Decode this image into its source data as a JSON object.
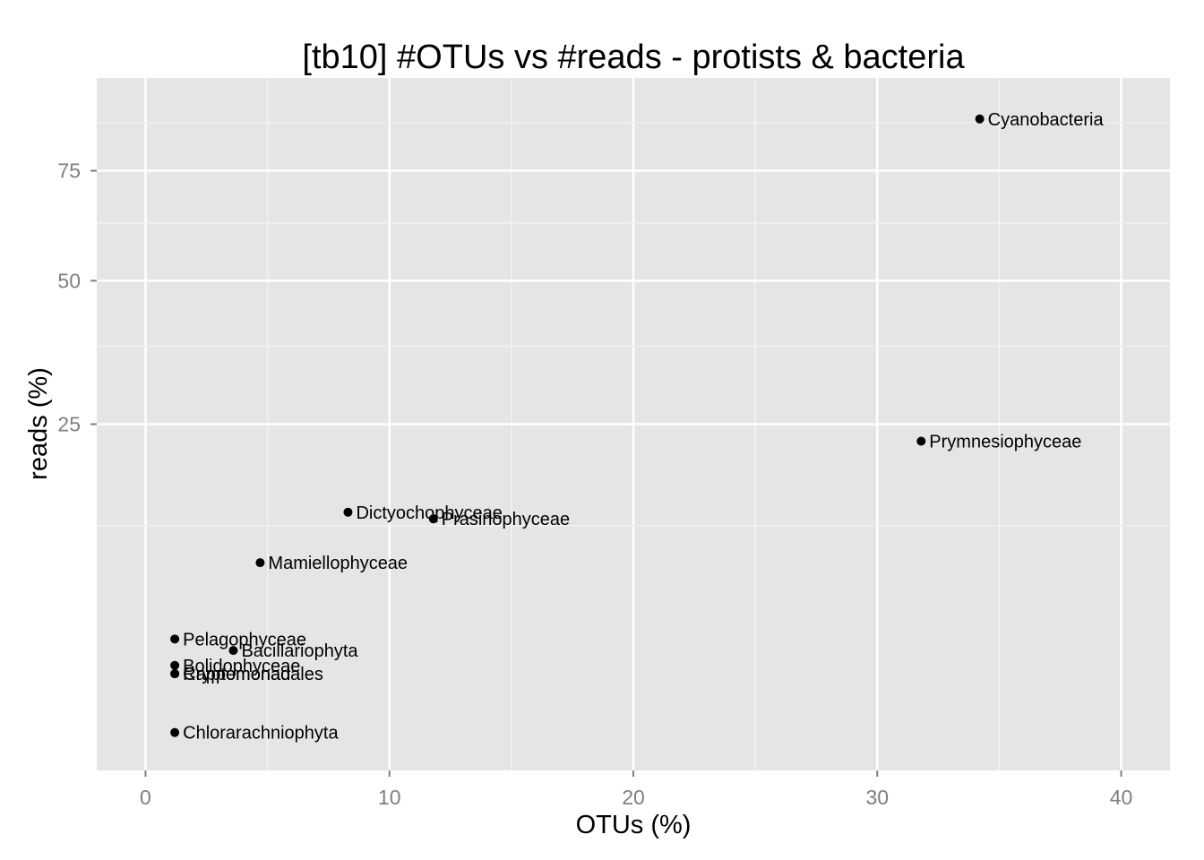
{
  "chart_data": {
    "type": "scatter",
    "title": "[tb10] #OTUs vs #reads - protists & bacteria",
    "xlabel": "OTUs (%)",
    "ylabel": "reads (%)",
    "xlim": [
      -2,
      42
    ],
    "x_ticks": [
      0,
      10,
      20,
      30,
      40
    ],
    "x_tick_labels": [
      "0",
      "10",
      "20",
      "30",
      "40"
    ],
    "y_scale": "sqrt",
    "ylim": [
      0,
      100
    ],
    "y_ticks": [
      25,
      50,
      75
    ],
    "y_tick_labels": [
      "25",
      "50",
      "75"
    ],
    "grid": true,
    "points": [
      {
        "label": "Cyanobacteria",
        "x": 34.2,
        "y": 88.5
      },
      {
        "label": "Prymnesiophyceae",
        "x": 31.8,
        "y": 22.6
      },
      {
        "label": "Dictyochophyceae",
        "x": 8.3,
        "y": 13.9
      },
      {
        "label": "Prasinophyceae",
        "x": 11.8,
        "y": 13.2
      },
      {
        "label": "Mamiellophyceae",
        "x": 4.7,
        "y": 9.0
      },
      {
        "label": "Pelagophyceae",
        "x": 1.2,
        "y": 3.6
      },
      {
        "label": "Bacillariophyta",
        "x": 3.6,
        "y": 3.0
      },
      {
        "label": "Bolidophyceae",
        "x": 1.2,
        "y": 2.3
      },
      {
        "label": "Cryptomonadales",
        "x": 1.2,
        "y": 1.95
      },
      {
        "label": "Rappemonad",
        "x": 1.2,
        "y": 1.95
      },
      {
        "label": "Chlorarachniophyta",
        "x": 1.2,
        "y": 0.3
      }
    ]
  }
}
